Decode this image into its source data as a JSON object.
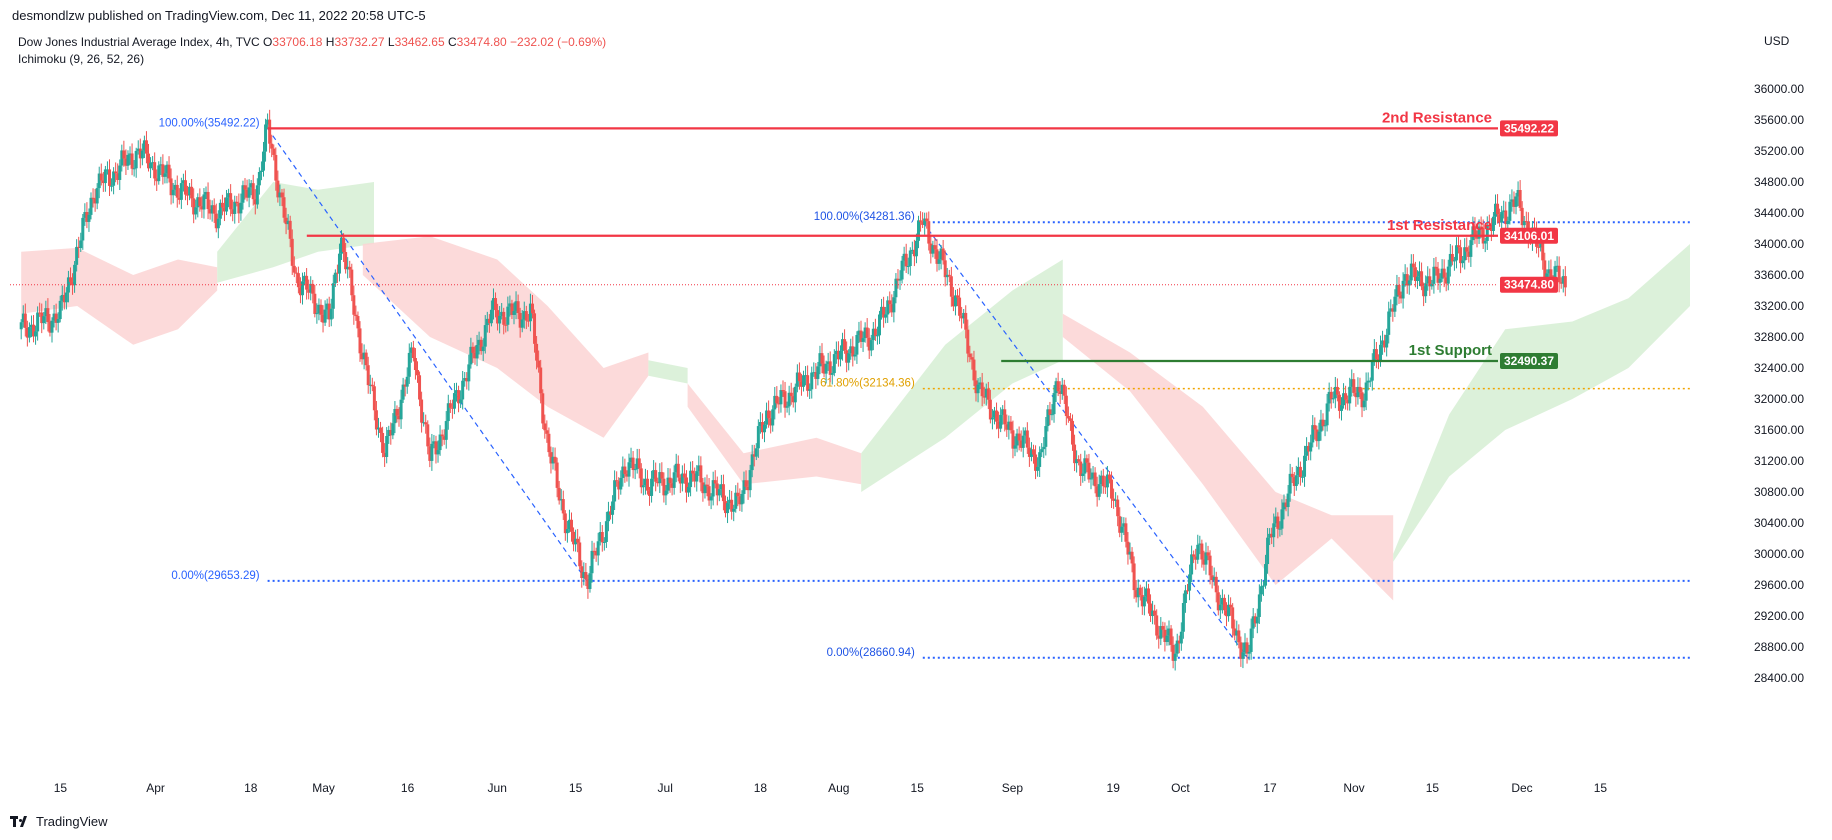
{
  "publisher": "desmondlzw published on TradingView.com, Dec 11, 2022 20:58 UTC-5",
  "legend": {
    "symbol": "Dow Jones Industrial Average Index, 4h, TVC",
    "o_label": "O",
    "o_value": "33706.18",
    "h_label": "H",
    "h_value": "33732.27",
    "l_label": "L",
    "l_value": "33462.65",
    "c_label": "C",
    "c_value": "33474.80",
    "change": "−232.02 (−0.69%)",
    "indicator": "Ichimoku (9, 26, 52, 26)"
  },
  "currency": "USD",
  "brand": "TradingView",
  "chart_data": {
    "type": "candlestick",
    "ylim": [
      28400,
      36400
    ],
    "y_ticks": [
      "36000.00",
      "35600.00",
      "35200.00",
      "34800.00",
      "34400.00",
      "34000.00",
      "33600.00",
      "33200.00",
      "32800.00",
      "32400.00",
      "32000.00",
      "31600.00",
      "31200.00",
      "30800.00",
      "30400.00",
      "30000.00",
      "29600.00",
      "29200.00",
      "28800.00",
      "28400.00"
    ],
    "x_ticks": [
      "15",
      "Apr",
      "18",
      "May",
      "16",
      "Jun",
      "15",
      "Jul",
      "18",
      "Aug",
      "15",
      "Sep",
      "19",
      "Oct",
      "17",
      "Nov",
      "15",
      "Dec",
      "15"
    ],
    "levels": [
      {
        "label": "2nd Resistance",
        "value": 35492.22,
        "tag": "35492.22",
        "color": "#f23645"
      },
      {
        "label": "1st Resistance",
        "value": 34106.01,
        "tag": "34106.01",
        "color": "#f23645"
      },
      {
        "label": "1st Support",
        "value": 32490.37,
        "tag": "32490.37",
        "color": "#2e7d32"
      }
    ],
    "last_price": {
      "value": 33474.8,
      "tag": "33474.80",
      "color": "#f23645"
    },
    "fib_labels": [
      {
        "text": "100.00%(35492.22)",
        "value": 35492.22
      },
      {
        "text": "0.00%(29653.29)",
        "value": 29653.29
      },
      {
        "text": "100.00%(34281.36)",
        "value": 34281.36
      },
      {
        "text": "61.80%(32134.36)",
        "value": 32134.36
      },
      {
        "text": "0.00%(28660.94)",
        "value": 28660.94
      }
    ],
    "swing_path": [
      [
        "2022-03-08",
        32900
      ],
      [
        "2022-03-15",
        33100
      ],
      [
        "2022-03-21",
        34700
      ],
      [
        "2022-03-29",
        35200
      ],
      [
        "2022-04-05",
        34700
      ],
      [
        "2022-04-12",
        34400
      ],
      [
        "2022-04-19",
        34700
      ],
      [
        "2022-04-21",
        35492
      ],
      [
        "2022-04-26",
        33600
      ],
      [
        "2022-05-02",
        33000
      ],
      [
        "2022-05-04",
        34100
      ],
      [
        "2022-05-09",
        32200
      ],
      [
        "2022-05-12",
        31300
      ],
      [
        "2022-05-17",
        32600
      ],
      [
        "2022-05-20",
        31200
      ],
      [
        "2022-05-24",
        31900
      ],
      [
        "2022-05-31",
        33100
      ],
      [
        "2022-06-07",
        33100
      ],
      [
        "2022-06-10",
        31400
      ],
      [
        "2022-06-13",
        30500
      ],
      [
        "2022-06-17",
        29653
      ],
      [
        "2022-06-24",
        31200
      ],
      [
        "2022-06-28",
        30900
      ],
      [
        "2022-07-06",
        31000
      ],
      [
        "2022-07-14",
        30600
      ],
      [
        "2022-07-19",
        31800
      ],
      [
        "2022-07-27",
        32300
      ],
      [
        "2022-08-02",
        32600
      ],
      [
        "2022-08-08",
        32900
      ],
      [
        "2022-08-16",
        34281
      ],
      [
        "2022-08-22",
        33300
      ],
      [
        "2022-08-26",
        32100
      ],
      [
        "2022-08-30",
        31700
      ],
      [
        "2022-09-06",
        31200
      ],
      [
        "2022-09-09",
        32300
      ],
      [
        "2022-09-13",
        31100
      ],
      [
        "2022-09-19",
        30800
      ],
      [
        "2022-09-23",
        29600
      ],
      [
        "2022-09-30",
        28700
      ],
      [
        "2022-10-04",
        30200
      ],
      [
        "2022-10-07",
        29600
      ],
      [
        "2022-10-13",
        28661
      ],
      [
        "2022-10-17",
        30200
      ],
      [
        "2022-10-21",
        30900
      ],
      [
        "2022-10-28",
        32000
      ],
      [
        "2022-11-03",
        32100
      ],
      [
        "2022-11-10",
        33600
      ],
      [
        "2022-11-15",
        33500
      ],
      [
        "2022-11-23",
        34100
      ],
      [
        "2022-11-30",
        34550
      ],
      [
        "2022-12-06",
        33600
      ],
      [
        "2022-12-09",
        33475
      ]
    ]
  }
}
